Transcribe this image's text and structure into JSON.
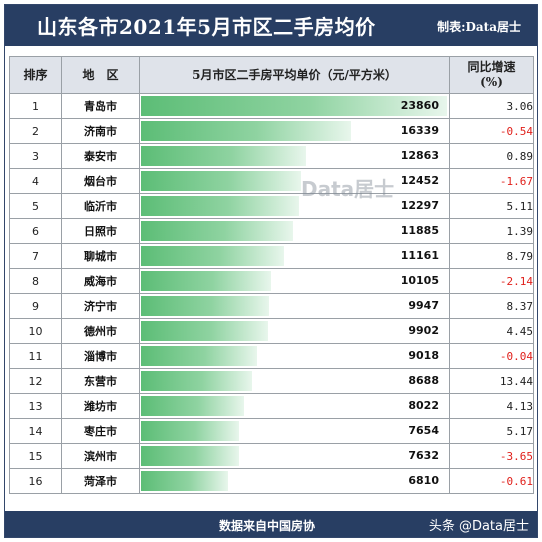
{
  "header": {
    "title": "山东各市2021年5月市区二手房均价",
    "credit": "制表:Data居士"
  },
  "columns": {
    "rank": "排序",
    "city": "地　区",
    "price": "5月市区二手房平均单价（元/平方米）",
    "growth_line1": "同比增速",
    "growth_line2": "(%)"
  },
  "watermark": "Data居士",
  "footer": {
    "source": "数据来自中国房协",
    "brand": "头条 @Data居士"
  },
  "colors": {
    "header_bg": "#283e63",
    "bar_green": "#5cbd76",
    "negative_red": "#e0201b"
  },
  "chart_data": {
    "type": "table",
    "title": "山东各市2021年5月市区二手房均价",
    "columns": [
      "排序",
      "地　区",
      "5月市区二手房平均单价（元/平方米）",
      "同比增速(%)"
    ],
    "bar_max": 23860,
    "rows": [
      {
        "rank": "1",
        "city": "青岛市",
        "price": 23860,
        "growth": "3.06"
      },
      {
        "rank": "2",
        "city": "济南市",
        "price": 16339,
        "growth": "-0.54"
      },
      {
        "rank": "3",
        "city": "泰安市",
        "price": 12863,
        "growth": "0.89"
      },
      {
        "rank": "4",
        "city": "烟台市",
        "price": 12452,
        "growth": "-1.67"
      },
      {
        "rank": "5",
        "city": "临沂市",
        "price": 12297,
        "growth": "5.11"
      },
      {
        "rank": "6",
        "city": "日照市",
        "price": 11885,
        "growth": "1.39"
      },
      {
        "rank": "7",
        "city": "聊城市",
        "price": 11161,
        "growth": "8.79"
      },
      {
        "rank": "8",
        "city": "威海市",
        "price": 10105,
        "growth": "-2.14"
      },
      {
        "rank": "9",
        "city": "济宁市",
        "price": 9947,
        "growth": "8.37"
      },
      {
        "rank": "10",
        "city": "德州市",
        "price": 9902,
        "growth": "4.45"
      },
      {
        "rank": "11",
        "city": "淄博市",
        "price": 9018,
        "growth": "-0.04"
      },
      {
        "rank": "12",
        "city": "东营市",
        "price": 8688,
        "growth": "13.44"
      },
      {
        "rank": "13",
        "city": "潍坊市",
        "price": 8022,
        "growth": "4.13"
      },
      {
        "rank": "14",
        "city": "枣庄市",
        "price": 7654,
        "growth": "5.17"
      },
      {
        "rank": "15",
        "city": "滨州市",
        "price": 7632,
        "growth": "-3.65"
      },
      {
        "rank": "16",
        "city": "菏泽市",
        "price": 6810,
        "growth": "-0.61"
      }
    ]
  }
}
